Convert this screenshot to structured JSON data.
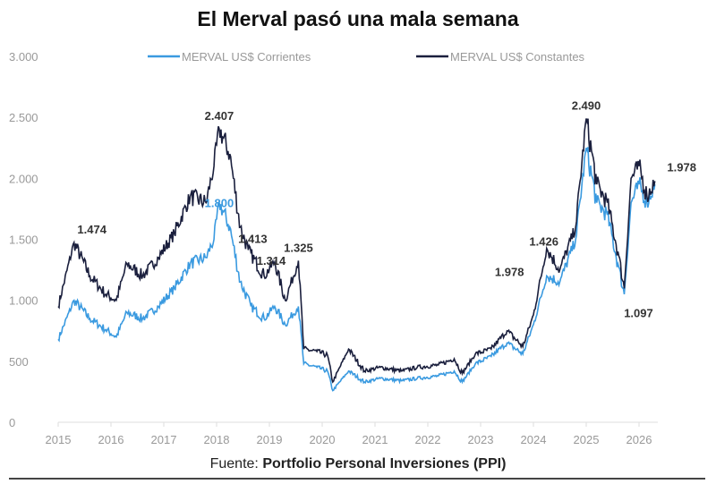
{
  "chart_data": {
    "type": "line",
    "title": "El Merval pasó una mala semana",
    "source_prefix": "Fuente:",
    "source": "Portfolio Personal Inversiones (PPI)",
    "ylim": [
      0,
      3000
    ],
    "yticks": [
      {
        "v": 0,
        "t": "0"
      },
      {
        "v": 500,
        "t": "500"
      },
      {
        "v": 1000,
        "t": "1.000"
      },
      {
        "v": 1500,
        "t": "1.500"
      },
      {
        "v": 2000,
        "t": "2.000"
      },
      {
        "v": 2500,
        "t": "2.500"
      },
      {
        "v": 3000,
        "t": "3.000"
      }
    ],
    "xlim": [
      2015,
      2026.4
    ],
    "xticks": [
      "2015",
      "2016",
      "2017",
      "2018",
      "2019",
      "2020",
      "2021",
      "2022",
      "2023",
      "2024",
      "2025",
      "2026"
    ],
    "legend": "top",
    "series": [
      {
        "name": "MERVAL US$ Corrientes",
        "color": "#3a9ae0",
        "points": [
          [
            2015,
            680
          ],
          [
            2015.3,
            1000
          ],
          [
            2015.6,
            850
          ],
          [
            2015.9,
            760
          ],
          [
            2016.1,
            700
          ],
          [
            2016.3,
            900
          ],
          [
            2016.6,
            850
          ],
          [
            2016.9,
            950
          ],
          [
            2017.2,
            1100
          ],
          [
            2017.5,
            1300
          ],
          [
            2017.8,
            1350
          ],
          [
            2017.95,
            1500
          ],
          [
            2018.05,
            1800
          ],
          [
            2018.25,
            1600
          ],
          [
            2018.45,
            1150
          ],
          [
            2018.65,
            950
          ],
          [
            2018.9,
            850
          ],
          [
            2019.1,
            950
          ],
          [
            2019.3,
            800
          ],
          [
            2019.55,
            950
          ],
          [
            2019.65,
            480
          ],
          [
            2019.9,
            450
          ],
          [
            2020.1,
            420
          ],
          [
            2020.2,
            260
          ],
          [
            2020.5,
            420
          ],
          [
            2020.8,
            330
          ],
          [
            2021.1,
            360
          ],
          [
            2021.5,
            340
          ],
          [
            2021.8,
            360
          ],
          [
            2022.2,
            380
          ],
          [
            2022.5,
            420
          ],
          [
            2022.65,
            330
          ],
          [
            2022.9,
            480
          ],
          [
            2023.2,
            540
          ],
          [
            2023.5,
            650
          ],
          [
            2023.8,
            560
          ],
          [
            2024.0,
            800
          ],
          [
            2024.25,
            1200
          ],
          [
            2024.5,
            1150
          ],
          [
            2024.8,
            1500
          ],
          [
            2025.0,
            2250
          ],
          [
            2025.2,
            1800
          ],
          [
            2025.4,
            1700
          ],
          [
            2025.6,
            1300
          ],
          [
            2025.72,
            1050
          ],
          [
            2025.85,
            1800
          ],
          [
            2026.0,
            1950
          ],
          [
            2026.15,
            1800
          ],
          [
            2026.3,
            1950
          ]
        ]
      },
      {
        "name": "MERVAL US$ Constantes",
        "color": "#1a1f3d",
        "points": [
          [
            2015,
            950
          ],
          [
            2015.3,
            1474
          ],
          [
            2015.6,
            1200
          ],
          [
            2015.9,
            1050
          ],
          [
            2016.1,
            1000
          ],
          [
            2016.3,
            1300
          ],
          [
            2016.6,
            1200
          ],
          [
            2016.9,
            1350
          ],
          [
            2017.2,
            1550
          ],
          [
            2017.5,
            1850
          ],
          [
            2017.8,
            1800
          ],
          [
            2017.95,
            2100
          ],
          [
            2018.05,
            2407
          ],
          [
            2018.25,
            2200
          ],
          [
            2018.45,
            1600
          ],
          [
            2018.6,
            1413
          ],
          [
            2018.9,
            1200
          ],
          [
            2019.1,
            1314
          ],
          [
            2019.3,
            1000
          ],
          [
            2019.55,
            1325
          ],
          [
            2019.65,
            600
          ],
          [
            2019.9,
            580
          ],
          [
            2020.1,
            550
          ],
          [
            2020.2,
            330
          ],
          [
            2020.5,
            600
          ],
          [
            2020.8,
            420
          ],
          [
            2021.1,
            450
          ],
          [
            2021.5,
            420
          ],
          [
            2021.8,
            450
          ],
          [
            2022.2,
            470
          ],
          [
            2022.5,
            520
          ],
          [
            2022.65,
            400
          ],
          [
            2022.9,
            560
          ],
          [
            2023.2,
            600
          ],
          [
            2023.5,
            750
          ],
          [
            2023.8,
            620
          ],
          [
            2024.0,
            880
          ],
          [
            2024.25,
            1426
          ],
          [
            2024.5,
            1250
          ],
          [
            2024.8,
            1600
          ],
          [
            2025.0,
            2490
          ],
          [
            2025.2,
            1950
          ],
          [
            2025.4,
            1800
          ],
          [
            2025.6,
            1400
          ],
          [
            2025.72,
            1097
          ],
          [
            2025.85,
            2000
          ],
          [
            2026.0,
            2100
          ],
          [
            2026.15,
            1850
          ],
          [
            2026.3,
            1978
          ]
        ]
      }
    ],
    "annotations": [
      {
        "x": 2015.3,
        "y": 1474,
        "t": "1.474",
        "series": 1
      },
      {
        "x": 2018.05,
        "y": 2407,
        "t": "2.407",
        "series": 1
      },
      {
        "x": 2018.05,
        "y": 1800,
        "t": "1.800",
        "series": 0
      },
      {
        "x": 2018.6,
        "y": 1413,
        "t": "1.413",
        "series": 1
      },
      {
        "x": 2019.1,
        "y": 1314,
        "t": "1.314",
        "series": 1
      },
      {
        "x": 2019.55,
        "y": 1325,
        "t": "1.325",
        "series": 1
      },
      {
        "x": 2023.8,
        "y": 1200,
        "t": "1.978",
        "series": 1
      },
      {
        "x": 2024.3,
        "y": 1500,
        "t": "1.426",
        "series": 1
      },
      {
        "x": 2025.0,
        "y": 2490,
        "t": "2.490",
        "series": 1
      },
      {
        "x": 2025.72,
        "y": 1097,
        "t": "1.097",
        "series": 1
      },
      {
        "x": 2026.3,
        "y": 1978,
        "t": "1.978",
        "series": 1
      }
    ]
  }
}
